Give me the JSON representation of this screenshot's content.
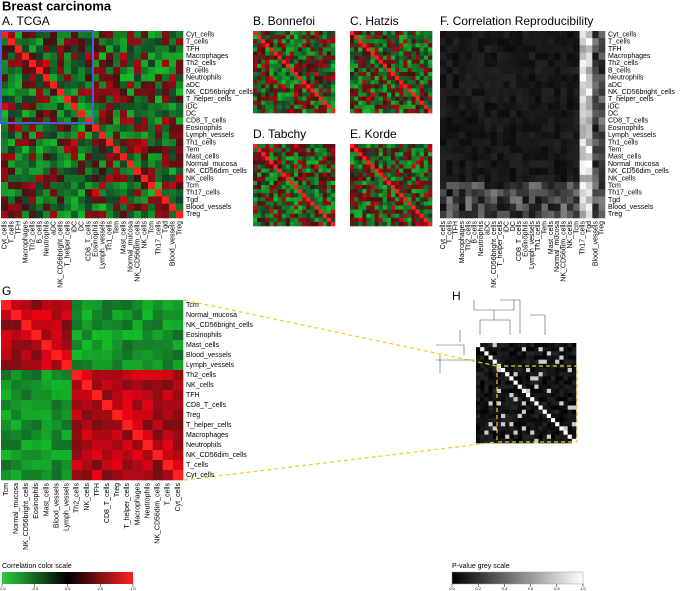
{
  "title": "Breast carcinoma",
  "panels": {
    "A": "A. TCGA",
    "B": "B. Bonnefoi",
    "C": "C. Hatzis",
    "D": "D. Tabchy",
    "E": "E. Korde",
    "F": "F. Correlation Reproducibility",
    "G": "G",
    "H": "H"
  },
  "cell_types": [
    "Cyt_cells",
    "T_cells",
    "TFH",
    "Macrophages",
    "Th2_cells",
    "B_cells",
    "Neutrophils",
    "aDC",
    "NK_CD56bright_cells",
    "T_helper_cells",
    "iDC",
    "DC",
    "CD8_T_cells",
    "Eosinophils",
    "Lymph_vessels",
    "Th1_cells",
    "Tem",
    "Mast_cells",
    "Normal_mucosa",
    "NK_CD56dim_cells",
    "NK_cells",
    "Tcm",
    "Th17_cells",
    "Tgd",
    "Blood_vessels",
    "Treg"
  ],
  "g_cell_types": [
    "Tcm",
    "Normal_mucosa",
    "NK_CD56bright_cells",
    "Eosinophils",
    "Mast_cells",
    "Blood_vessels",
    "Lymph_vessels",
    "Th2_cells",
    "NK_cells",
    "TFH",
    "CD8_T_cells",
    "Treg",
    "T_helper_cells",
    "Macrophages",
    "Neutrophils",
    "NK_CD56dim_cells",
    "T_cells",
    "Cyt_cells"
  ],
  "correlation_scale": {
    "title": "Correlation color scale",
    "ticks": [
      {
        "value": -1,
        "label": "-1.0"
      },
      {
        "value": -0.5,
        "label": "-0.5"
      },
      {
        "value": 0,
        "label": "0.0"
      },
      {
        "value": 0.5,
        "label": "0.5"
      },
      {
        "value": 1,
        "label": "1.0"
      }
    ]
  },
  "pvalue_scale": {
    "title": "P-value grey scale",
    "ticks": [
      {
        "value": 0,
        "label": "0.0"
      },
      {
        "value": 0.2,
        "label": "0.2"
      },
      {
        "value": 0.4,
        "label": "0.4"
      },
      {
        "value": 0.6,
        "label": "0.6"
      },
      {
        "value": 0.8,
        "label": "0.8"
      },
      {
        "value": 1,
        "label": "1.0"
      }
    ]
  }
}
